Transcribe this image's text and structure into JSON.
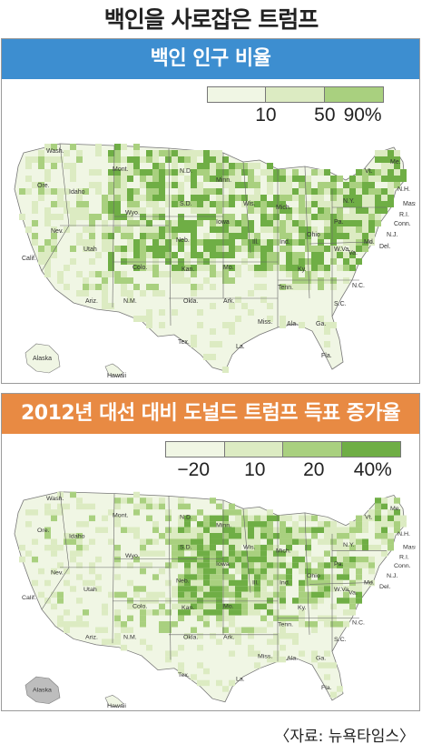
{
  "title": "백인을 사로잡은 트럼프",
  "source": "〈자료: 뉴욕타임스〉",
  "colors": {
    "header1": "#3d8ed0",
    "header2": "#e88a43",
    "green_very_light": "#f0f6e4",
    "green_light": "#dcebc2",
    "green_mid": "#a9d07f",
    "green_dark": "#6fae45"
  },
  "panel1": {
    "header": "백인 인구 비율",
    "legend_ticks": [
      "10",
      "50",
      "90%"
    ],
    "legend_colors": [
      "#f0f6e4",
      "#dcebc2",
      "#a9d07f"
    ]
  },
  "panel2": {
    "header": "2012년 대선 대비 도널드 트럼프 득표 증가율",
    "legend_ticks": [
      "−20",
      "10",
      "20",
      "40%"
    ],
    "legend_colors": [
      "#f0f6e4",
      "#dcebc2",
      "#a9d07f",
      "#6fae45"
    ]
  },
  "state_labels": [
    "Wash.",
    "Ore.",
    "Idaho",
    "Mont.",
    "N.D.",
    "Minn.",
    "Wis.",
    "Mich.",
    "Vt.",
    "Me.",
    "N.H.",
    "Mass.",
    "R.I.",
    "Conn.",
    "N.Y.",
    "Pa.",
    "N.J.",
    "Del.",
    "Md.",
    "Va.",
    "W.Va.",
    "Ohio",
    "Ind.",
    "Ill.",
    "Iowa",
    "S.D.",
    "Wyo.",
    "Nev.",
    "Calif.",
    "Utah",
    "Colo.",
    "Neb.",
    "Kan.",
    "Mo.",
    "Ky.",
    "Tenn.",
    "N.C.",
    "S.C.",
    "Ga.",
    "Ala.",
    "Miss.",
    "La.",
    "Ark.",
    "Okla.",
    "Tex.",
    "N.M.",
    "Ariz.",
    "Fla.",
    "Alaska",
    "Hawaii"
  ]
}
